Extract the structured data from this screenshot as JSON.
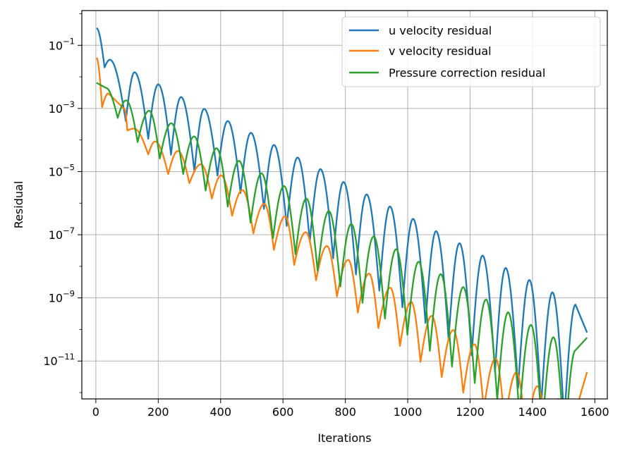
{
  "chart_data": {
    "type": "line",
    "title": "",
    "xlabel": "Iterations",
    "ylabel": "Residual",
    "xlim": [
      -45,
      1640
    ],
    "ylim_log10": [
      -12.2,
      0.1
    ],
    "yscale": "log",
    "grid": true,
    "legend_position": "upper right",
    "x_ticks": [
      0,
      200,
      400,
      600,
      800,
      1000,
      1200,
      1400,
      1600
    ],
    "y_tick_exponents": [
      -1,
      -3,
      -5,
      -7,
      -9,
      -11
    ],
    "y_tick_labels": [
      {
        "base": "10",
        "exp": "−1"
      },
      {
        "base": "10",
        "exp": "−3"
      },
      {
        "base": "10",
        "exp": "−5"
      },
      {
        "base": "10",
        "exp": "−7"
      },
      {
        "base": "10",
        "exp": "−9"
      },
      {
        "base": "10",
        "exp": "−11"
      }
    ],
    "series": [
      {
        "name": "u velocity residual",
        "color": "#1f77b4",
        "start": {
          "x": 2,
          "y": 0.35
        },
        "dips": [
          {
            "x": 28,
            "y": 0.02
          },
          {
            "x": 96,
            "y": 0.0004
          },
          {
            "x": 168,
            "y": 0.00011
          },
          {
            "x": 241,
            "y": 3.4e-05
          },
          {
            "x": 316,
            "y": 1e-05
          },
          {
            "x": 390,
            "y": 7.5e-06
          },
          {
            "x": 464,
            "y": 2.1e-06
          },
          {
            "x": 539,
            "y": 6.6e-07
          },
          {
            "x": 612,
            "y": 1.9e-07
          },
          {
            "x": 686,
            "y": 6e-08
          },
          {
            "x": 761,
            "y": 1.8e-08
          },
          {
            "x": 834,
            "y": 5.5e-09
          },
          {
            "x": 909,
            "y": 1.7e-09
          },
          {
            "x": 983,
            "y": 5e-10
          },
          {
            "x": 1057,
            "y": 1.6e-10
          },
          {
            "x": 1131,
            "y": 5e-11
          },
          {
            "x": 1205,
            "y": 1.5e-11
          },
          {
            "x": 1280,
            "y": 4.5e-12
          },
          {
            "x": 1354,
            "y": 1.4e-12
          },
          {
            "x": 1428,
            "y": 4e-13
          },
          {
            "x": 1502,
            "y": 1.3e-13
          }
        ],
        "peaks": [
          {
            "x": 45,
            "y": 0.035
          },
          {
            "x": 124,
            "y": 0.014
          },
          {
            "x": 200,
            "y": 0.0058
          },
          {
            "x": 273,
            "y": 0.0023
          },
          {
            "x": 347,
            "y": 0.00097
          },
          {
            "x": 423,
            "y": 0.0004
          },
          {
            "x": 497,
            "y": 0.00017
          },
          {
            "x": 571,
            "y": 7e-05
          },
          {
            "x": 647,
            "y": 2.8e-05
          },
          {
            "x": 720,
            "y": 1.2e-05
          },
          {
            "x": 794,
            "y": 4.7e-06
          },
          {
            "x": 868,
            "y": 1.9e-06
          },
          {
            "x": 943,
            "y": 7.9e-07
          },
          {
            "x": 1017,
            "y": 3.2e-07
          },
          {
            "x": 1091,
            "y": 1.3e-07
          },
          {
            "x": 1166,
            "y": 5.4e-08
          },
          {
            "x": 1240,
            "y": 2.2e-08
          },
          {
            "x": 1314,
            "y": 8.9e-09
          },
          {
            "x": 1390,
            "y": 3.7e-09
          },
          {
            "x": 1464,
            "y": 1.5e-09
          },
          {
            "x": 1538,
            "y": 6.1e-10
          }
        ],
        "end": {
          "x": 1575,
          "y": 8e-11
        }
      },
      {
        "name": "v velocity residual",
        "color": "#ff7f0e",
        "start": {
          "x": 2,
          "y": 0.04
        },
        "dips": [
          {
            "x": 20,
            "y": 0.0011
          },
          {
            "x": 101,
            "y": 0.0002
          },
          {
            "x": 168,
            "y": 3.5e-05
          },
          {
            "x": 232,
            "y": 8.3e-06
          },
          {
            "x": 300,
            "y": 4.3e-06
          },
          {
            "x": 372,
            "y": 1.4e-06
          },
          {
            "x": 437,
            "y": 4e-07
          },
          {
            "x": 505,
            "y": 1.1e-07
          },
          {
            "x": 571,
            "y": 3.3e-08
          },
          {
            "x": 636,
            "y": 1.1e-08
          },
          {
            "x": 706,
            "y": 3.6e-09
          },
          {
            "x": 773,
            "y": 1.1e-09
          },
          {
            "x": 840,
            "y": 3.4e-10
          },
          {
            "x": 906,
            "y": 1.1e-10
          },
          {
            "x": 975,
            "y": 3e-11
          },
          {
            "x": 1041,
            "y": 9.4e-12
          },
          {
            "x": 1109,
            "y": 3.1e-12
          },
          {
            "x": 1178,
            "y": 1e-12
          },
          {
            "x": 1244,
            "y": 3e-13
          },
          {
            "x": 1311,
            "y": 1e-13
          },
          {
            "x": 1380,
            "y": 3e-14
          },
          {
            "x": 1450,
            "y": 1.2e-14
          }
        ],
        "peaks": [
          {
            "x": 40,
            "y": 0.003
          },
          {
            "x": 92,
            "y": 0.00095
          },
          {
            "x": 122,
            "y": 0.00023
          },
          {
            "x": 190,
            "y": 9e-05
          },
          {
            "x": 263,
            "y": 4.5e-05
          },
          {
            "x": 337,
            "y": 1.7e-05
          },
          {
            "x": 402,
            "y": 7.6e-06
          },
          {
            "x": 470,
            "y": 2.6e-06
          },
          {
            "x": 540,
            "y": 9.5e-07
          },
          {
            "x": 607,
            "y": 3.8e-07
          },
          {
            "x": 673,
            "y": 1.2e-07
          },
          {
            "x": 741,
            "y": 4.4e-08
          },
          {
            "x": 809,
            "y": 1.6e-08
          },
          {
            "x": 876,
            "y": 5.9e-09
          },
          {
            "x": 944,
            "y": 2.1e-09
          },
          {
            "x": 1011,
            "y": 7.5e-10
          },
          {
            "x": 1077,
            "y": 2.7e-10
          },
          {
            "x": 1146,
            "y": 9.6e-11
          },
          {
            "x": 1214,
            "y": 3.4e-11
          },
          {
            "x": 1282,
            "y": 1.2e-11
          },
          {
            "x": 1349,
            "y": 4.4e-12
          },
          {
            "x": 1416,
            "y": 1.6e-12
          },
          {
            "x": 1483,
            "y": 6.3e-13
          },
          {
            "x": 1538,
            "y": 2.5e-13
          }
        ],
        "end": {
          "x": 1575,
          "y": 4.5e-12
        }
      },
      {
        "name": "Pressure correction residual",
        "color": "#2ca02c",
        "start": {
          "x": 2,
          "y": 0.0065
        },
        "dips": [
          {
            "x": 70,
            "y": 0.0005
          },
          {
            "x": 134,
            "y": 8.6e-05
          },
          {
            "x": 205,
            "y": 2.6e-05
          },
          {
            "x": 280,
            "y": 8.4e-06
          },
          {
            "x": 352,
            "y": 2.5e-06
          },
          {
            "x": 423,
            "y": 7.8e-07
          },
          {
            "x": 496,
            "y": 2.4e-07
          },
          {
            "x": 568,
            "y": 7.8e-08
          },
          {
            "x": 640,
            "y": 2.4e-08
          },
          {
            "x": 711,
            "y": 7.3e-09
          },
          {
            "x": 784,
            "y": 2.3e-09
          },
          {
            "x": 855,
            "y": 7e-10
          },
          {
            "x": 927,
            "y": 2.2e-10
          },
          {
            "x": 999,
            "y": 6.8e-11
          },
          {
            "x": 1071,
            "y": 2.1e-11
          },
          {
            "x": 1142,
            "y": 6.6e-12
          },
          {
            "x": 1215,
            "y": 2e-12
          },
          {
            "x": 1287,
            "y": 6e-13
          },
          {
            "x": 1358,
            "y": 2e-13
          },
          {
            "x": 1431,
            "y": 6e-14
          },
          {
            "x": 1503,
            "y": 1.8e-14
          }
        ],
        "peaks": [
          {
            "x": 32,
            "y": 0.0045
          },
          {
            "x": 97,
            "y": 0.0018
          },
          {
            "x": 171,
            "y": 0.00085
          },
          {
            "x": 242,
            "y": 0.00034
          },
          {
            "x": 315,
            "y": 0.00013
          },
          {
            "x": 387,
            "y": 5.5e-05
          },
          {
            "x": 459,
            "y": 2.2e-05
          },
          {
            "x": 531,
            "y": 8.8e-06
          },
          {
            "x": 603,
            "y": 3.5e-06
          },
          {
            "x": 675,
            "y": 1.4e-06
          },
          {
            "x": 747,
            "y": 5.6e-07
          },
          {
            "x": 819,
            "y": 2.2e-07
          },
          {
            "x": 891,
            "y": 8.9e-08
          },
          {
            "x": 963,
            "y": 3.5e-08
          },
          {
            "x": 1035,
            "y": 1.4e-08
          },
          {
            "x": 1106,
            "y": 5.7e-09
          },
          {
            "x": 1178,
            "y": 2.2e-09
          },
          {
            "x": 1251,
            "y": 8.9e-10
          },
          {
            "x": 1322,
            "y": 3.5e-10
          },
          {
            "x": 1395,
            "y": 1.4e-10
          },
          {
            "x": 1467,
            "y": 5.7e-11
          },
          {
            "x": 1538,
            "y": 2.2e-11
          }
        ],
        "end": {
          "x": 1575,
          "y": 5.5e-11
        }
      }
    ]
  }
}
